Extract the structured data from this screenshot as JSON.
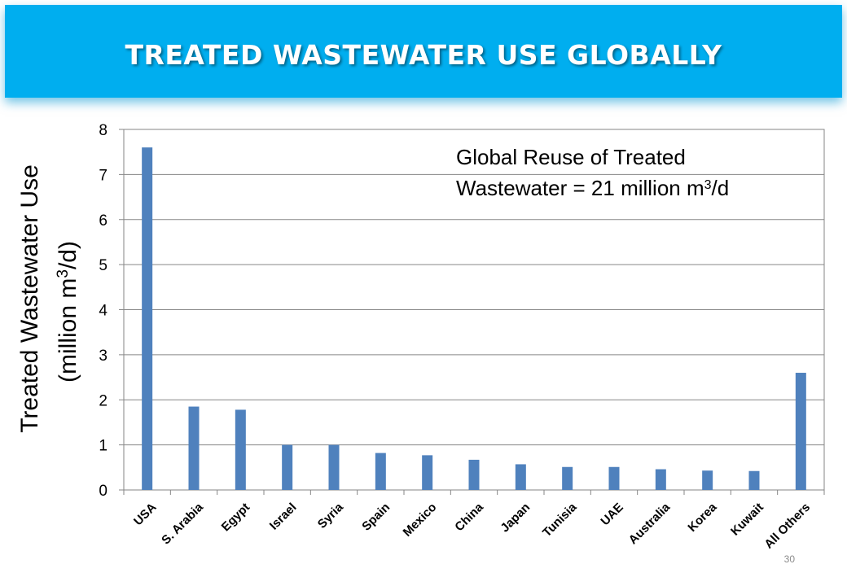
{
  "slide": {
    "title": "TREATED WASTEWATER USE GLOBALLY",
    "page_number": "30",
    "banner_color": "#00aeef"
  },
  "chart_data": {
    "type": "bar",
    "categories": [
      "USA",
      "S. Arabia",
      "Egypt",
      "Israel",
      "Syria",
      "Spain",
      "Mexico",
      "China",
      "Japan",
      "Tunisia",
      "UAE",
      "Australia",
      "Korea",
      "Kuwait",
      "All Others"
    ],
    "values": [
      7.6,
      1.85,
      1.78,
      1.0,
      1.0,
      0.82,
      0.77,
      0.67,
      0.57,
      0.51,
      0.51,
      0.46,
      0.43,
      0.42,
      2.6
    ],
    "ylabel_line1": "Treated Wastewater Use",
    "ylabel_line2_pre": "(million m",
    "ylabel_line2_sup": "3",
    "ylabel_line2_post": "/d)",
    "ylim": [
      0,
      8
    ],
    "yticks": [
      0,
      1,
      2,
      3,
      4,
      5,
      6,
      7,
      8
    ],
    "grid": true,
    "annotation_line1": "Global Reuse of Treated",
    "annotation_line2_pre": "Wastewater = 21 million m",
    "annotation_line2_sup": "3",
    "annotation_line2_post": "/d",
    "bar_color": "#4f81bd"
  }
}
